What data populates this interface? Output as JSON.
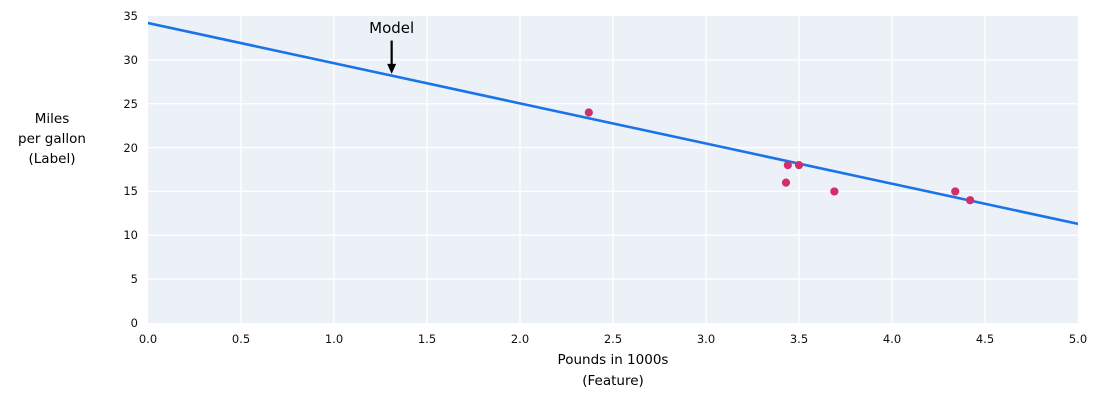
{
  "chart_data": {
    "type": "scatter",
    "title": "",
    "xlabel_lines": [
      "Pounds in 1000s",
      "(Feature)"
    ],
    "ylabel_lines": [
      "Miles",
      "per gallon",
      "(Label)"
    ],
    "xlim": [
      0,
      5
    ],
    "ylim": [
      0,
      35
    ],
    "grid": true,
    "legend": "none",
    "x_ticks": [
      {
        "value": 0.0,
        "label": "0.0"
      },
      {
        "value": 0.5,
        "label": "0.5"
      },
      {
        "value": 1.0,
        "label": "1.0"
      },
      {
        "value": 1.5,
        "label": "1.5"
      },
      {
        "value": 2.0,
        "label": "2.0"
      },
      {
        "value": 2.5,
        "label": "2.5"
      },
      {
        "value": 3.0,
        "label": "3.0"
      },
      {
        "value": 3.5,
        "label": "3.5"
      },
      {
        "value": 4.0,
        "label": "4.0"
      },
      {
        "value": 4.5,
        "label": "4.5"
      },
      {
        "value": 5.0,
        "label": "5.0"
      }
    ],
    "y_ticks": [
      {
        "value": 0,
        "label": "0"
      },
      {
        "value": 5,
        "label": "5"
      },
      {
        "value": 10,
        "label": "10"
      },
      {
        "value": 15,
        "label": "15"
      },
      {
        "value": 20,
        "label": "20"
      },
      {
        "value": 25,
        "label": "25"
      },
      {
        "value": 30,
        "label": "30"
      },
      {
        "value": 35,
        "label": "35"
      }
    ],
    "points": [
      [
        2.37,
        24
      ],
      [
        3.44,
        18
      ],
      [
        3.5,
        18
      ],
      [
        3.43,
        16
      ],
      [
        3.69,
        15
      ],
      [
        4.34,
        15
      ],
      [
        4.42,
        14
      ]
    ],
    "model_line": {
      "x": [
        0,
        5
      ],
      "y": [
        34.2,
        11.3
      ]
    },
    "annotation": {
      "label": "Model",
      "x": 1.31,
      "text_y": 33.6,
      "arrow_from_y": 32.2,
      "arrow_tip_y": 28.4
    }
  },
  "colors": {
    "model_line": "#1a73e8",
    "point": "#d02e6c",
    "plot_bg": "#ecf0f7",
    "grid": "#ffffff",
    "text": "#111111",
    "annotation": "#000000"
  }
}
